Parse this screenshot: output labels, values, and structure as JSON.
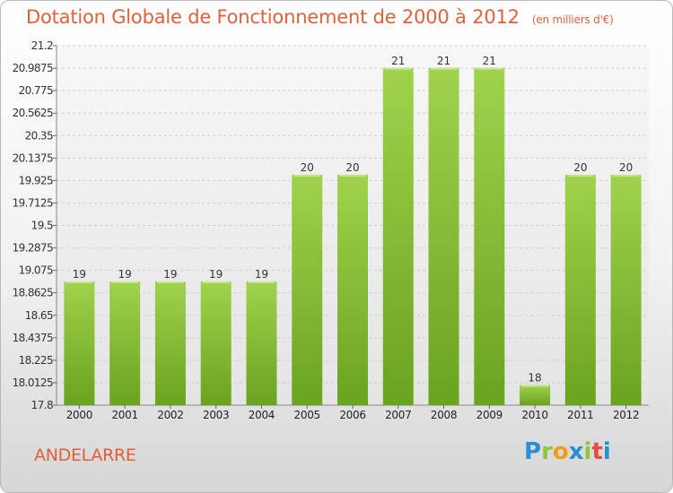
{
  "chart_data": {
    "type": "bar",
    "title": "Dotation Globale de Fonctionnement de 2000 à 2012",
    "subtitle": "(en milliers d'€)",
    "categories": [
      "2000",
      "2001",
      "2002",
      "2003",
      "2004",
      "2005",
      "2006",
      "2007",
      "2008",
      "2009",
      "2010",
      "2011",
      "2012"
    ],
    "values": [
      19,
      19,
      19,
      19,
      19,
      20,
      20,
      21,
      21,
      21,
      18,
      20,
      20
    ],
    "bar_heights": [
      18.97,
      18.97,
      18.97,
      18.97,
      18.97,
      19.98,
      19.98,
      20.99,
      20.99,
      20.99,
      17.99,
      19.98,
      19.98
    ],
    "ylim": [
      17.8,
      21.2
    ],
    "yticks": [
      "17.8",
      "18.0125",
      "18.225",
      "18.4375",
      "18.65",
      "18.8625",
      "19.075",
      "19.2875",
      "19.5",
      "19.7125",
      "19.925",
      "20.1375",
      "20.35",
      "20.5625",
      "20.775",
      "20.9875",
      "21.2"
    ],
    "grid": true,
    "bar_color": "#8cc63f"
  },
  "footer": {
    "location": "ANDELARRE",
    "logo_text": "Proxiti"
  }
}
